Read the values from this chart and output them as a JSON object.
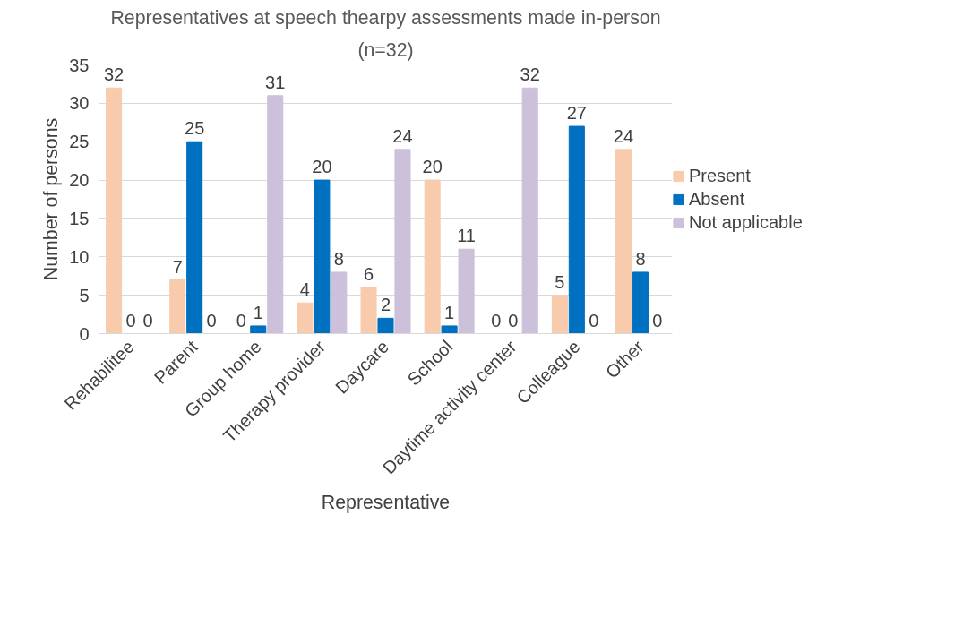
{
  "chart_data": {
    "type": "bar",
    "title": "Representatives at speech thearpy assessments made in-person",
    "subtitle": "(n=32)",
    "xlabel": "Representative",
    "ylabel": "Number of persons",
    "categories": [
      "Rehabilitee",
      "Parent",
      "Group home",
      "Therapy provider",
      "Daycare",
      "School",
      "Daytime activity center",
      "Colleague",
      "Other"
    ],
    "series": [
      {
        "name": "Present",
        "color": "#f8cbad",
        "values": [
          32,
          7,
          0,
          4,
          6,
          20,
          0,
          5,
          24
        ]
      },
      {
        "name": "Absent",
        "color": "#0070c0",
        "values": [
          0,
          25,
          1,
          20,
          2,
          1,
          0,
          27,
          8
        ]
      },
      {
        "name": "Not applicable",
        "color": "#ccc0da",
        "values": [
          0,
          0,
          31,
          8,
          24,
          11,
          32,
          0,
          0
        ]
      }
    ],
    "ylim": [
      0,
      35
    ],
    "yticks": [
      0,
      5,
      10,
      15,
      20,
      25,
      30,
      35
    ],
    "grid": "y",
    "legend": "right",
    "data_labels": true
  }
}
